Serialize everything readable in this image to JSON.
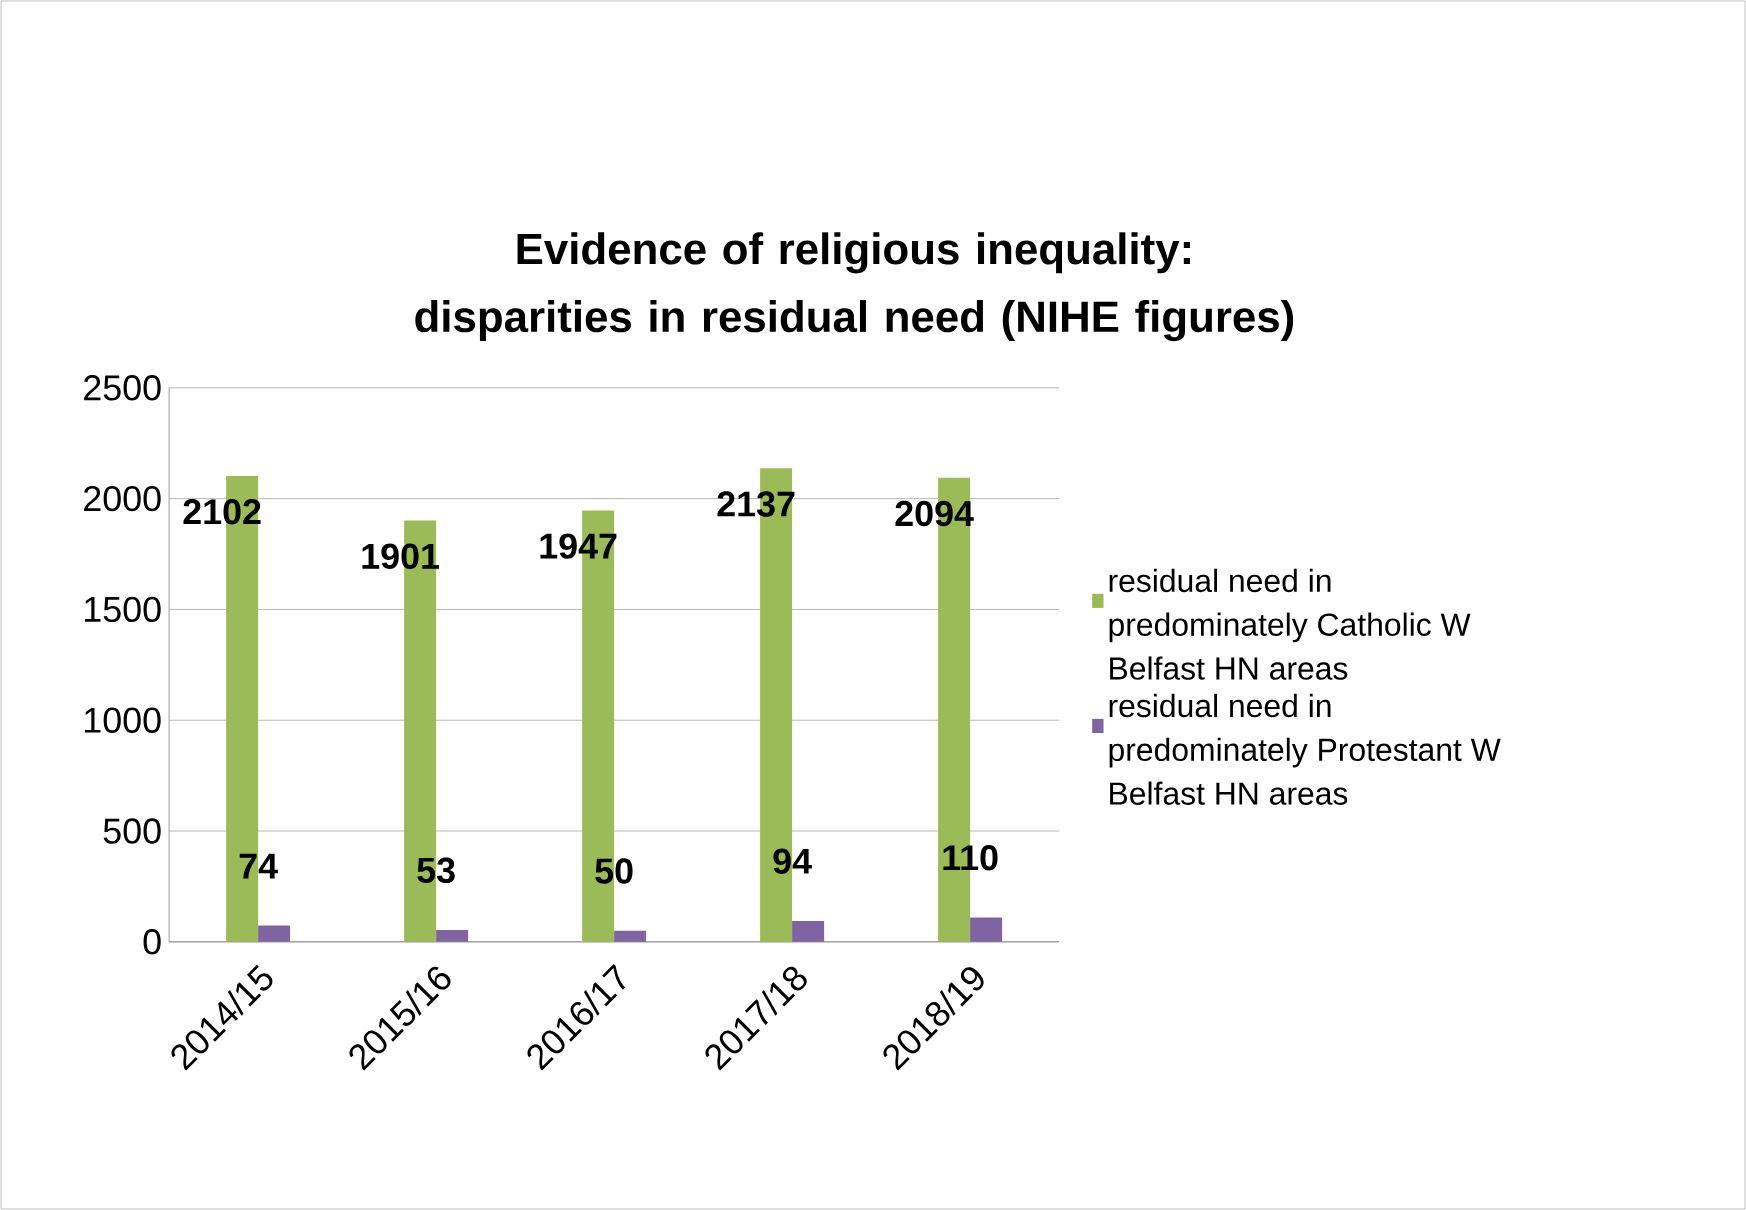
{
  "chart_data": {
    "type": "bar",
    "title": "Evidence of religious inequality: disparities in residual need (NIHE figures)",
    "categories": [
      "2014/15",
      "2015/16",
      "2016/17",
      "2017/18",
      "2018/19"
    ],
    "series": [
      {
        "name": "residual need in predominately Catholic W Belfast HN areas",
        "color": "#9bbb59",
        "values": [
          2102,
          1901,
          1947,
          2137,
          2094
        ]
      },
      {
        "name": "residual need in predominately Protestant W Belfast HN areas",
        "color": "#8064a2",
        "values": [
          74,
          53,
          50,
          94,
          110
        ]
      }
    ],
    "ylim": [
      0,
      2500
    ],
    "yticks": [
      0,
      500,
      1000,
      1500,
      2000,
      2500
    ],
    "grid": "y",
    "legend": "right",
    "data_labels": true
  }
}
